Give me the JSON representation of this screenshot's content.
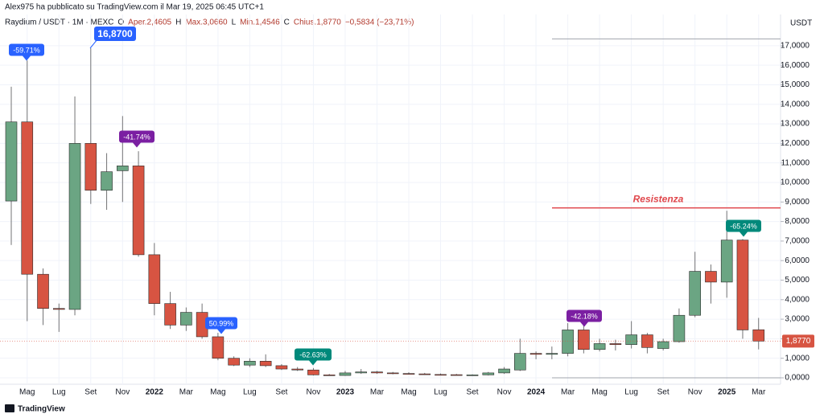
{
  "header": {
    "byline": "Alex975 ha pubblicato su TradingView.com il Mar 19, 2025 06:45 UTC+1",
    "legend": [
      {
        "text": "Raydium / USDT · 1M · MEXC",
        "color": "#131722"
      },
      {
        "text": "O",
        "color": "#131722"
      },
      {
        "text": "Aper.2,4605",
        "color": "#b23a2e"
      },
      {
        "text": "H",
        "color": "#131722"
      },
      {
        "text": "Max.3,0660",
        "color": "#b23a2e"
      },
      {
        "text": "L",
        "color": "#131722"
      },
      {
        "text": "Min.1,4546",
        "color": "#b23a2e"
      },
      {
        "text": "C",
        "color": "#131722"
      },
      {
        "text": "Chius.1,8770",
        "color": "#b23a2e"
      },
      {
        "text": "−0,5834 (−23,71%)",
        "color": "#b23a2e"
      }
    ]
  },
  "chart_data": {
    "type": "candlestick",
    "y_axis_title": "USDT",
    "categories": [
      null,
      "Mag",
      null,
      "Lug",
      null,
      "Set",
      null,
      "Nov",
      null,
      "2022",
      null,
      "Mar",
      null,
      "Mag",
      null,
      "Lug",
      null,
      "Set",
      null,
      "Nov",
      null,
      "2023",
      null,
      "Mar",
      null,
      "Mag",
      null,
      "Lug",
      null,
      "Set",
      null,
      "Nov",
      null,
      "2024",
      null,
      "Mar",
      null,
      "Mag",
      null,
      "Lug",
      null,
      "Set",
      null,
      "Nov",
      null,
      "2025",
      null,
      "Mar"
    ],
    "open": [
      9.05,
      13.1,
      5.3,
      3.55,
      3.5,
      12.0,
      9.6,
      10.6,
      10.85,
      6.3,
      3.8,
      2.7,
      3.35,
      2.1,
      1.0,
      0.65,
      0.85,
      0.62,
      0.45,
      0.4,
      0.15,
      0.12,
      0.25,
      0.3,
      0.25,
      0.22,
      0.2,
      0.17,
      0.16,
      0.13,
      0.15,
      0.25,
      0.4,
      1.25,
      1.2,
      1.25,
      2.45,
      1.45,
      1.75,
      1.7,
      2.2,
      1.5,
      1.85,
      3.2,
      5.45,
      4.9,
      7.05,
      2.4605
    ],
    "high": [
      14.9,
      16.25,
      5.6,
      3.8,
      14.4,
      16.87,
      11.5,
      13.4,
      11.6,
      6.9,
      4.4,
      3.6,
      3.8,
      2.3,
      1.1,
      1.0,
      1.2,
      0.7,
      0.55,
      0.5,
      0.2,
      0.35,
      0.45,
      0.35,
      0.3,
      0.28,
      0.25,
      0.22,
      0.2,
      0.18,
      0.3,
      0.55,
      2.0,
      1.35,
      1.6,
      2.8,
      2.8,
      2.0,
      1.95,
      2.9,
      2.3,
      2.0,
      3.55,
      6.45,
      5.8,
      8.55,
      7.1,
      3.066
    ],
    "low": [
      6.8,
      2.9,
      2.7,
      2.35,
      3.2,
      8.9,
      8.6,
      9.0,
      6.2,
      3.2,
      2.5,
      2.4,
      2.0,
      0.9,
      0.6,
      0.55,
      0.55,
      0.4,
      0.35,
      0.12,
      0.1,
      0.1,
      0.2,
      0.2,
      0.18,
      0.17,
      0.15,
      0.13,
      0.12,
      0.1,
      0.12,
      0.2,
      0.35,
      0.95,
      0.95,
      1.1,
      1.25,
      1.35,
      1.4,
      1.5,
      1.25,
      1.4,
      1.8,
      3.1,
      3.8,
      4.1,
      2.0,
      1.4546
    ],
    "close": [
      13.1,
      5.3,
      3.55,
      3.5,
      12.0,
      9.6,
      10.55,
      10.85,
      6.3,
      3.8,
      2.7,
      3.35,
      2.1,
      1.0,
      0.65,
      0.85,
      0.62,
      0.45,
      0.4,
      0.15,
      0.12,
      0.25,
      0.3,
      0.25,
      0.22,
      0.2,
      0.17,
      0.16,
      0.13,
      0.15,
      0.25,
      0.45,
      1.25,
      1.2,
      1.25,
      2.45,
      1.45,
      1.75,
      1.7,
      2.2,
      1.55,
      1.85,
      3.2,
      5.45,
      4.9,
      7.05,
      2.45,
      1.877
    ],
    "up_color": "#6ba583",
    "down_color": "#d75442",
    "ylim": [
      -0.33,
      18.6
    ],
    "yticks": [
      {
        "value": 0,
        "label": "0,0000"
      },
      {
        "value": 1,
        "label": "1,0000"
      },
      {
        "value": 2,
        "label": "2,0000"
      },
      {
        "value": 3,
        "label": "3,0000"
      },
      {
        "value": 4,
        "label": "4,0000"
      },
      {
        "value": 5,
        "label": "5,0000"
      },
      {
        "value": 6,
        "label": "6,0000"
      },
      {
        "value": 7,
        "label": "7,0000"
      },
      {
        "value": 8,
        "label": "8,0000"
      },
      {
        "value": 9,
        "label": "9,0000"
      },
      {
        "value": 10,
        "label": "10,0000"
      },
      {
        "value": 11,
        "label": "11,0000"
      },
      {
        "value": 12,
        "label": "12,0000"
      },
      {
        "value": 13,
        "label": "13,0000"
      },
      {
        "value": 14,
        "label": "14,0000"
      },
      {
        "value": 15,
        "label": "15,0000"
      },
      {
        "value": 16,
        "label": "16,0000"
      },
      {
        "value": 17,
        "label": "17,0000"
      }
    ],
    "grid": true,
    "last_price_label": "1,8770",
    "resistance": {
      "label": "Resistenza",
      "value": 8.7,
      "color": "#e0474c"
    },
    "range_lines": [
      {
        "value": 17.35,
        "color": "#a0a4ad"
      },
      {
        "value": 0,
        "color": "#a0a4ad"
      }
    ],
    "annotations": [
      {
        "text": "-59.71%",
        "color": "#2962ff"
      },
      {
        "text": "16,8700",
        "color": "#2962ff"
      },
      {
        "text": "-41.74%",
        "color": "#7b1fa2"
      },
      {
        "text": "50.99%",
        "color": "#2962ff"
      },
      {
        "text": "-62.63%",
        "color": "#00897b"
      },
      {
        "text": "-42.18%",
        "color": "#7b1fa2"
      },
      {
        "text": "-65.24%",
        "color": "#00897b"
      }
    ]
  },
  "footer": {
    "brand": "TradingView"
  }
}
